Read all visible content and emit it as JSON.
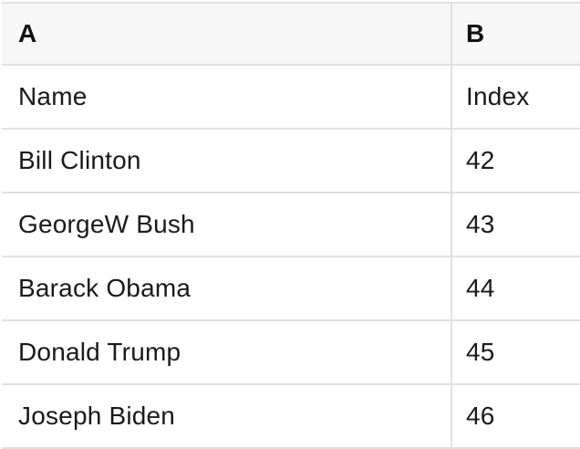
{
  "colors": {
    "header_bg": "#f7f7f7",
    "grid_border": "#e0e0e0",
    "text": "#1a1a1a"
  },
  "table": {
    "columns": [
      "A",
      "B"
    ],
    "rows": [
      {
        "name": "Name",
        "index": "Index"
      },
      {
        "name": "Bill Clinton",
        "index": "42"
      },
      {
        "name": "GeorgeW Bush",
        "index": "43"
      },
      {
        "name": "Barack Obama",
        "index": "44"
      },
      {
        "name": "Donald Trump",
        "index": "45"
      },
      {
        "name": "Joseph Biden",
        "index": "46"
      }
    ]
  }
}
